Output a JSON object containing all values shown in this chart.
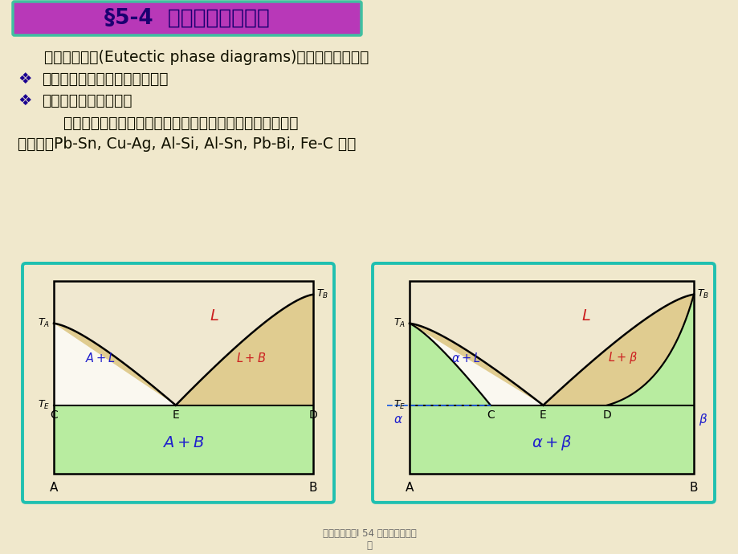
{
  "bg_color": "#f0e8cc",
  "title_text": "§5-4  二元共晶合金相图",
  "title_facecolor": "#b838b8",
  "title_text_color": "#1a0070",
  "title_border_color": "#40c0a0",
  "line1": "二元共晶相图(Eutectic phase diagrams)有两种基本形式：",
  "bullet1": "♥  在固态时二组元完全不相互溶解",
  "bullet2": "♥  在固态二组元有限溶解",
  "line4": "    后一种形式是常见的共晶相图。金属材料中具有共晶相图的",
  "line5": "合金系有Pb-Sn, Cu-Ag, Al-Si, Al-Sn, Pb-Bi, Fe-C 等。",
  "footer": "材料科学基础I 54 二元共晶合金相\n图",
  "diagram_outer_color": "#20c0b0",
  "diagram_inner_bg": "#f8f4e8",
  "diagram_top_fill": "#f0e8c8",
  "diagram_side_fill": "#e8d8a0",
  "diagram_bottom_fill": "#c0f0a0",
  "l_color": "#cc2020",
  "phase_color": "#2020cc",
  "black": "#000000"
}
